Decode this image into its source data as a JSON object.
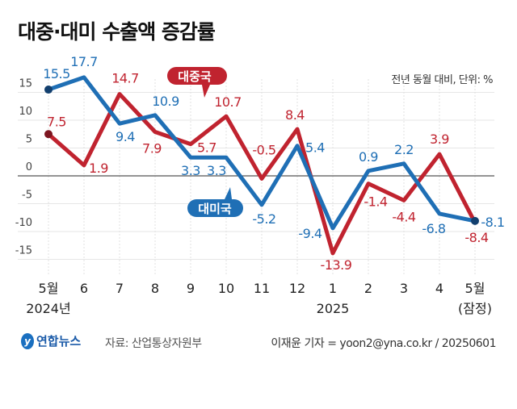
{
  "title": "대중·대미 수출액 증감률",
  "unit_note": "전년 동월 대비, 단위: %",
  "chart_data": {
    "type": "line",
    "title": "대중·대미 수출액 증감률",
    "categories": [
      "5월",
      "6",
      "7",
      "8",
      "9",
      "10",
      "11",
      "12",
      "1",
      "2",
      "3",
      "4",
      "5월"
    ],
    "year_labels": [
      {
        "index": 0,
        "text": "2024년"
      },
      {
        "index": 8,
        "text": "2025"
      },
      {
        "index": 12,
        "text": "(잠정)"
      }
    ],
    "ylim": [
      -15,
      15
    ],
    "yticks": [
      15,
      10,
      5,
      0,
      -5,
      -10,
      -15
    ],
    "ytick_labels": [
      "15",
      "10",
      "5",
      "0",
      "-5",
      "-10",
      "-15"
    ],
    "grid": true,
    "series": [
      {
        "name": "대미국",
        "color": "#1f6fb5",
        "values": [
          15.5,
          17.7,
          9.4,
          10.9,
          3.3,
          3.3,
          -5.2,
          5.4,
          -9.4,
          0.9,
          2.2,
          -6.8,
          -8.1
        ],
        "labels": [
          "15.5",
          "17.7",
          "9.4",
          "10.9",
          "3.3",
          "3.3",
          "-5.2",
          "5.4",
          "-9.4",
          "0.9",
          "2.2",
          "-6.8",
          "-8.1"
        ]
      },
      {
        "name": "대중국",
        "color": "#c0232f",
        "values": [
          7.5,
          1.9,
          14.7,
          7.9,
          5.7,
          10.7,
          -0.5,
          8.4,
          -13.9,
          -1.4,
          -4.4,
          3.9,
          -8.4
        ],
        "labels": [
          "7.5",
          "1.9",
          "14.7",
          "7.9",
          "5.7",
          "10.7",
          "-0.5",
          "8.4",
          "-13.9",
          "-1.4",
          "-4.4",
          "3.9",
          "-8.4"
        ]
      }
    ]
  },
  "footer": {
    "logo_text": "연합뉴스",
    "source": "자료: 산업통상자원부",
    "credit": "이재윤 기자 = yoon2@yna.co.kr / 20250601"
  }
}
